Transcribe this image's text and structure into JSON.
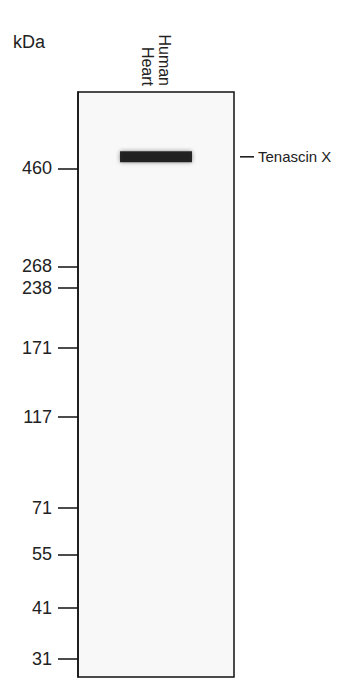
{
  "chart_data": {
    "type": "western_blot",
    "y_label": "kDa",
    "categories": [
      "Human Heart"
    ],
    "log": "y",
    "ylim": [
      28,
      700
    ],
    "yticks": [
      460,
      268,
      238,
      171,
      117,
      71,
      55,
      41,
      31
    ],
    "bands": [
      {
        "category": "Human Heart",
        "value": 490,
        "label": "Tenascin X"
      }
    ]
  }
}
